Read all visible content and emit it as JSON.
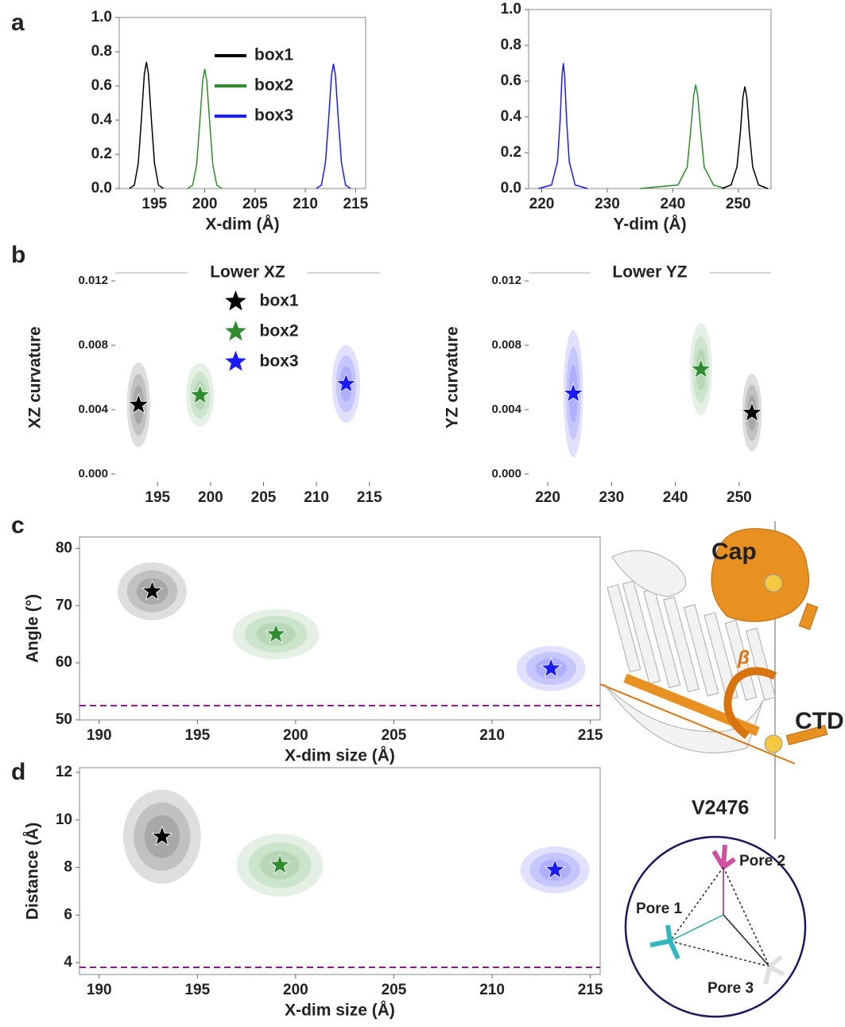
{
  "panel_labels": [
    "a",
    "b",
    "c",
    "d"
  ],
  "illustration": {
    "cap": "Cap",
    "ctd": "CTD",
    "angle": "β",
    "residue": "V2476",
    "pore1": "Pore 1",
    "pore2": "Pore 2",
    "pore3": "Pore 3"
  },
  "chart_data": [
    {
      "type": "line",
      "xlabel": "X-dim (Å)",
      "xlim": [
        191.5,
        216
      ],
      "ylim": [
        0,
        1
      ],
      "xticks": [
        195,
        200,
        205,
        210,
        215
      ],
      "yticks": [
        {
          "value": 0,
          "label": "0.0"
        },
        0.2,
        0.4,
        0.6,
        0.8,
        {
          "value": 1,
          "label": "1.0"
        }
      ],
      "frame": true,
      "legend": "upper center",
      "series": [
        {
          "name": "box1",
          "color": "#000000",
          "x": [
            192.5,
            193,
            193.4,
            193.7,
            194,
            194.2,
            194.4,
            194.7,
            195,
            195.4,
            195.9
          ],
          "values": [
            0,
            0.02,
            0.15,
            0.4,
            0.67,
            0.74,
            0.67,
            0.4,
            0.15,
            0.02,
            0
          ]
        },
        {
          "name": "box2",
          "color": "#2e8b2e",
          "x": [
            198.3,
            198.8,
            199.2,
            199.5,
            199.8,
            200,
            200.2,
            200.5,
            200.8,
            201.2,
            201.7
          ],
          "values": [
            0,
            0.02,
            0.14,
            0.38,
            0.63,
            0.7,
            0.63,
            0.38,
            0.14,
            0.02,
            0
          ]
        },
        {
          "name": "box3",
          "color": "#1a1aff",
          "x": [
            211.1,
            211.6,
            212,
            212.3,
            212.6,
            212.8,
            213,
            213.3,
            213.6,
            214,
            214.5
          ],
          "values": [
            0,
            0.02,
            0.15,
            0.39,
            0.66,
            0.73,
            0.66,
            0.39,
            0.15,
            0.02,
            0
          ]
        }
      ]
    },
    {
      "type": "line",
      "xlabel": "Y-dim (Å)",
      "xlim": [
        218,
        255
      ],
      "ylim": [
        0,
        1
      ],
      "xticks": [
        220,
        230,
        240,
        250
      ],
      "yticks": [
        {
          "value": 0,
          "label": "0.0"
        },
        0.2,
        0.4,
        0.6,
        0.8,
        {
          "value": 1,
          "label": "1.0"
        }
      ],
      "frame": true,
      "series": [
        {
          "color": "#1a1aff",
          "x": [
            219.5,
            221.5,
            222.4,
            222.8,
            223.1,
            223.3,
            223.5,
            223.8,
            224.2,
            225.1,
            227
          ],
          "values": [
            0,
            0.02,
            0.15,
            0.38,
            0.63,
            0.7,
            0.63,
            0.38,
            0.15,
            0.02,
            0
          ]
        },
        {
          "color": "#2e8b2e",
          "x": [
            235,
            240.8,
            242.2,
            242.7,
            243.2,
            243.5,
            243.8,
            244.3,
            244.8,
            246.2,
            248
          ],
          "values": [
            0,
            0.02,
            0.12,
            0.31,
            0.52,
            0.58,
            0.52,
            0.31,
            0.12,
            0.02,
            0
          ]
        },
        {
          "color": "#000000",
          "x": [
            247.5,
            248.9,
            249.8,
            250.3,
            250.7,
            251,
            251.3,
            251.7,
            252.2,
            253.1,
            254.5
          ],
          "values": [
            0,
            0.02,
            0.12,
            0.31,
            0.51,
            0.57,
            0.51,
            0.31,
            0.12,
            0.02,
            0
          ]
        }
      ]
    },
    {
      "type": "scatter",
      "title": "Lower XZ",
      "ylabel": "XZ curvature",
      "xlim": [
        191,
        216
      ],
      "ylim": [
        -0.0005,
        0.0125
      ],
      "xticks": [
        195,
        200,
        205,
        210,
        215
      ],
      "yticks": [
        {
          "value": 0,
          "label": "0.000"
        },
        0.004,
        0.008,
        0.012
      ],
      "frame": false,
      "legend": "upper center",
      "series": [
        {
          "name": "box1",
          "color": "#000000",
          "x": 193.2,
          "values": 0.0043,
          "x_sd": 0.5,
          "y_sd": 0.0012
        },
        {
          "name": "box2",
          "color": "#2e8b2e",
          "x": 199,
          "values": 0.0049,
          "x_sd": 0.6,
          "y_sd": 0.0009
        },
        {
          "name": "box3",
          "color": "#1a1aff",
          "x": 212.8,
          "values": 0.0056,
          "x_sd": 0.6,
          "y_sd": 0.0011
        }
      ]
    },
    {
      "type": "scatter",
      "title": "Lower YZ",
      "ylabel": "YZ curvature",
      "xlim": [
        217,
        255
      ],
      "ylim": [
        -0.0005,
        0.0125
      ],
      "xticks": [
        220,
        230,
        240,
        250
      ],
      "yticks": [
        {
          "value": 0,
          "label": "0.000"
        },
        0.004,
        0.008,
        0.012
      ],
      "frame": false,
      "series": [
        {
          "color": "#1a1aff",
          "x": 224,
          "values": 0.005,
          "x_sd": 0.7,
          "y_sd": 0.0018
        },
        {
          "color": "#2e8b2e",
          "x": 244,
          "values": 0.0065,
          "x_sd": 0.8,
          "y_sd": 0.0013
        },
        {
          "color": "#000000",
          "x": 252,
          "values": 0.0038,
          "x_sd": 0.7,
          "y_sd": 0.0011
        }
      ]
    },
    {
      "type": "scatter",
      "xlabel": "X-dim size (Å)",
      "ylabel": "Angle (°)",
      "xlim": [
        189,
        215.5
      ],
      "ylim": [
        50,
        82
      ],
      "xticks": [
        190,
        195,
        200,
        205,
        210,
        215
      ],
      "yticks": [
        50,
        60,
        70,
        80
      ],
      "frame": true,
      "reference_line": {
        "value": 52.5,
        "color": "#8b1a8b"
      },
      "series": [
        {
          "color": "#000000",
          "x": 192.7,
          "values": 72.5,
          "x_sd": 0.8,
          "y_sd": 2.3
        },
        {
          "color": "#2e8b2e",
          "x": 199,
          "values": 65,
          "x_sd": 1,
          "y_sd": 2
        },
        {
          "color": "#1a1aff",
          "x": 213,
          "values": 59,
          "x_sd": 0.8,
          "y_sd": 1.8
        }
      ]
    },
    {
      "type": "scatter",
      "xlabel": "X-dim size (Å)",
      "ylabel": "Distance (Å)",
      "xlim": [
        189,
        215.5
      ],
      "ylim": [
        3.5,
        12.2
      ],
      "xticks": [
        190,
        195,
        200,
        205,
        210,
        215
      ],
      "yticks": [
        4,
        6,
        8,
        10,
        12
      ],
      "frame": true,
      "reference_line": {
        "value": 3.8,
        "color": "#8b1a8b"
      },
      "series": [
        {
          "color": "#000000",
          "x": 193.2,
          "values": 9.3,
          "x_sd": 0.9,
          "y_sd": 0.9
        },
        {
          "color": "#2e8b2e",
          "x": 199.2,
          "values": 8.1,
          "x_sd": 1,
          "y_sd": 0.6
        },
        {
          "color": "#1a1aff",
          "x": 213.2,
          "values": 7.9,
          "x_sd": 0.8,
          "y_sd": 0.45
        }
      ]
    }
  ]
}
